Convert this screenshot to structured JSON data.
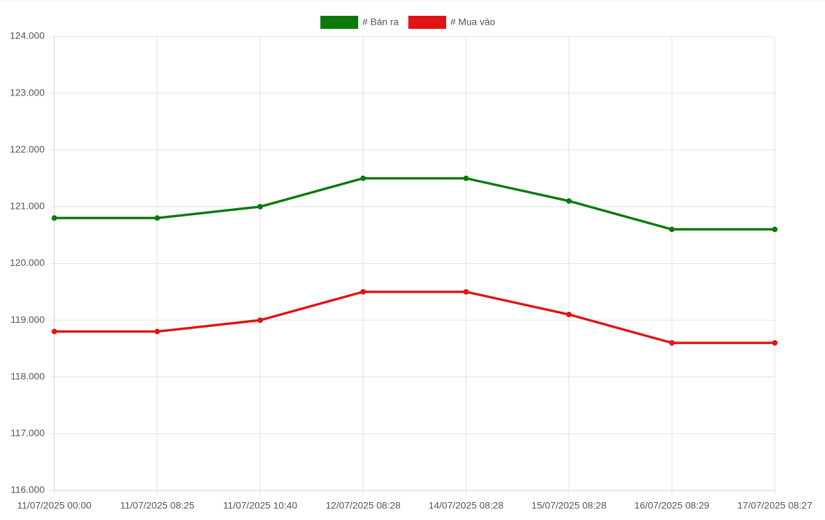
{
  "chart_data": {
    "type": "line",
    "categories": [
      "11/07/2025 00:00",
      "11/07/2025 08:25",
      "11/07/2025 10:40",
      "12/07/2025 08:28",
      "14/07/2025 08:28",
      "15/07/2025 08:28",
      "16/07/2025 08:29",
      "17/07/2025 08:27"
    ],
    "series": [
      {
        "name": "# Bán ra",
        "color": "#0a7a0a",
        "values": [
          120800,
          120800,
          121000,
          121500,
          121500,
          121100,
          120600,
          120600
        ]
      },
      {
        "name": "# Mua vào",
        "color": "#e01414",
        "values": [
          118800,
          118800,
          119000,
          119500,
          119500,
          119100,
          118600,
          118600
        ]
      }
    ],
    "ylim": [
      116000,
      124000
    ],
    "yticks": [
      {
        "value": 116000,
        "label": "116.000"
      },
      {
        "value": 117000,
        "label": "117.000"
      },
      {
        "value": 118000,
        "label": "118.000"
      },
      {
        "value": 119000,
        "label": "119.000"
      },
      {
        "value": 120000,
        "label": "120.000"
      },
      {
        "value": 121000,
        "label": "121.000"
      },
      {
        "value": 122000,
        "label": "122.000"
      },
      {
        "value": 123000,
        "label": "123.000"
      },
      {
        "value": 124000,
        "label": "124.000"
      }
    ],
    "grid": true,
    "legend": "top"
  }
}
